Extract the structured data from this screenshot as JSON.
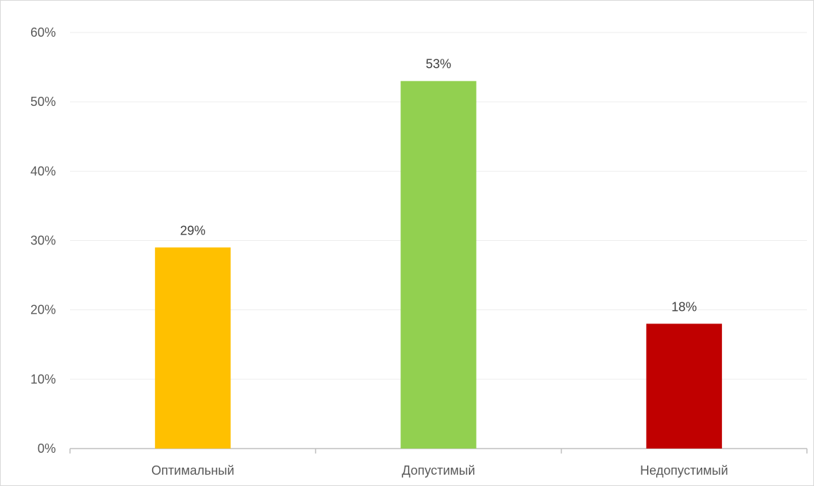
{
  "chart_data": {
    "type": "bar",
    "title": "",
    "xlabel": "",
    "ylabel": "",
    "categories": [
      "Оптимальный",
      "Допустимый",
      "Недопустимый"
    ],
    "values": [
      29,
      53,
      18
    ],
    "data_labels": [
      "29%",
      "53%",
      "18%"
    ],
    "bar_colors": [
      "#FFC000",
      "#92D050",
      "#C00000"
    ],
    "ylim": [
      0,
      60
    ],
    "y_ticks": [
      0,
      10,
      20,
      30,
      40,
      50,
      60
    ],
    "y_tick_labels": [
      "0%",
      "10%",
      "20%",
      "30%",
      "40%",
      "50%",
      "60%"
    ],
    "grid": true,
    "gridline_color": "#ededed",
    "axis_color": "#bfbfbf",
    "legend": "none"
  }
}
